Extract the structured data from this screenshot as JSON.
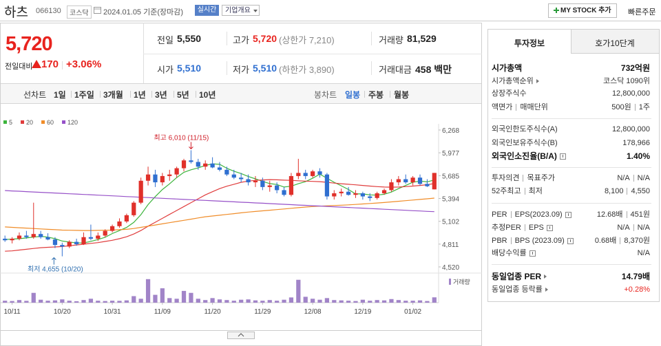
{
  "header": {
    "name": "하츠",
    "code": "066130",
    "market": "코스닥",
    "date": "2024.01.05 기준(장마감)",
    "realtime": "실시간",
    "company": "기업개요",
    "mystock": "MY STOCK 추가",
    "quick_order": "빠른주문"
  },
  "price": {
    "current": "5,720",
    "change_label": "전일대비",
    "change": "170",
    "change_pct": "+3.06%"
  },
  "quote": [
    [
      {
        "label": "전일",
        "value": "5,550"
      },
      {
        "label": "고가",
        "value": "5,720",
        "note": "(상한가 7,210)"
      },
      {
        "label": "거래량",
        "value": "81,529"
      }
    ],
    [
      {
        "label": "시가",
        "value": "5,510"
      },
      {
        "label": "저가",
        "value": "5,510",
        "note": "(하한가 3,890)"
      },
      {
        "label": "거래대금",
        "value": "458 백만"
      }
    ]
  ],
  "chart_tabs": {
    "line_label": "선차트",
    "line": [
      "1일",
      "1주일",
      "3개월",
      "1년",
      "3년",
      "5년",
      "10년"
    ],
    "candle_label": "봉차트",
    "candle": [
      "일봉",
      "주봉",
      "월봉"
    ]
  },
  "side": {
    "tabs": [
      "투자정보",
      "호가10단계"
    ],
    "sections": [
      [
        {
          "label": [
            "시가총액"
          ],
          "value": [
            "732억원"
          ]
        },
        {
          "label": [
            "시가총액순위"
          ],
          "value": [
            "코스닥 1090위"
          ]
        },
        {
          "label": [
            "상장주식수"
          ],
          "value": [
            "12,800,000"
          ]
        },
        {
          "label": [
            "액면가",
            "매매단위"
          ],
          "value": [
            "500원",
            "1주"
          ]
        }
      ],
      [
        {
          "label": [
            "외국인한도주식수(A)"
          ],
          "value": [
            "12,800,000"
          ]
        },
        {
          "label": [
            "외국인보유주식수(B)"
          ],
          "value": [
            "178,966"
          ]
        },
        {
          "label": [
            "외국인소진율(B/A)"
          ],
          "value": [
            "1.40%"
          ]
        }
      ],
      [
        {
          "label": [
            "투자의견",
            "목표주가"
          ],
          "value": [
            "N/A",
            "N/A"
          ]
        },
        {
          "label": [
            "52주최고",
            "최저"
          ],
          "value": [
            "8,100",
            "4,550"
          ]
        }
      ],
      [
        {
          "label": [
            "PER",
            "EPS(2023.09)"
          ],
          "value": [
            "12.68배",
            "451원"
          ]
        },
        {
          "label": [
            "추정PER",
            "EPS"
          ],
          "value": [
            "N/A",
            "N/A"
          ]
        },
        {
          "label": [
            "PBR",
            "BPS (2023.09)"
          ],
          "value": [
            "0.68배",
            "8,370원"
          ]
        },
        {
          "label": [
            "배당수익률"
          ],
          "value": [
            "N/A"
          ]
        }
      ],
      [
        {
          "label": [
            "동일업종 PER"
          ],
          "value": [
            "14.79배"
          ]
        },
        {
          "label": [
            "동일업종 등락률"
          ],
          "value": [
            "+0.28%"
          ]
        }
      ]
    ]
  },
  "chart_data": {
    "type": "candlestick",
    "categories": [
      null,
      "10/11",
      null,
      null,
      null,
      null,
      null,
      null,
      "10/20",
      null,
      null,
      null,
      null,
      null,
      null,
      "10/31",
      null,
      null,
      null,
      null,
      null,
      null,
      "11/09",
      null,
      null,
      null,
      null,
      null,
      null,
      "11/20",
      null,
      null,
      null,
      null,
      null,
      null,
      "11/29",
      null,
      null,
      null,
      null,
      null,
      null,
      "12/08",
      null,
      null,
      null,
      null,
      null,
      null,
      "12/19",
      null,
      null,
      null,
      null,
      null,
      null,
      "01/02",
      null,
      null,
      null
    ],
    "open": [
      4880,
      4860,
      4880,
      4920,
      4900,
      4940,
      4900,
      4870,
      4800,
      4780,
      4840,
      4810,
      4900,
      4880,
      4920,
      4980,
      5040,
      5100,
      5180,
      5340,
      5620,
      5700,
      5600,
      5680,
      5700,
      5780,
      5880,
      5860,
      5800,
      5840,
      5790,
      5760,
      5700,
      5660,
      5640,
      5600,
      5620,
      5540,
      5560,
      5500,
      5440,
      5680,
      5720,
      5680,
      5740,
      5700,
      5420,
      5460,
      5480,
      5440,
      5460,
      5420,
      5400,
      5460,
      5500,
      5600,
      5640,
      5600,
      5660,
      5580,
      5510
    ],
    "high": [
      4920,
      4900,
      4960,
      4980,
      5340,
      4980,
      4950,
      4900,
      4830,
      4860,
      4880,
      4960,
      5060,
      4960,
      5000,
      5060,
      5140,
      5200,
      5360,
      5660,
      5800,
      5760,
      5720,
      5760,
      5800,
      5900,
      6010,
      5900,
      5880,
      5920,
      5860,
      5800,
      5760,
      5720,
      5700,
      5680,
      5660,
      5620,
      5600,
      5540,
      5720,
      5900,
      5760,
      5760,
      5780,
      5720,
      5500,
      5520,
      5540,
      5500,
      5480,
      5460,
      5480,
      5520,
      5640,
      5680,
      5700,
      5680,
      5700,
      5640,
      5720
    ],
    "low": [
      4840,
      4820,
      4860,
      4880,
      4880,
      4880,
      4860,
      4760,
      4655,
      4760,
      4790,
      4800,
      4860,
      4850,
      4900,
      4960,
      5020,
      5080,
      5160,
      5320,
      5560,
      5540,
      5560,
      5620,
      5660,
      5740,
      5840,
      5760,
      5760,
      5780,
      5740,
      5680,
      5640,
      5600,
      5560,
      5540,
      5500,
      5480,
      5460,
      5420,
      5420,
      5640,
      5640,
      5660,
      5660,
      5380,
      5380,
      5420,
      5430,
      5400,
      5380,
      5360,
      5380,
      5440,
      5480,
      5560,
      5580,
      5560,
      5560,
      5540,
      5510
    ],
    "close": [
      4860,
      4880,
      4920,
      4900,
      4940,
      4900,
      4870,
      4800,
      4780,
      4840,
      4810,
      4900,
      4880,
      4920,
      4980,
      5040,
      5100,
      5180,
      5340,
      5620,
      5700,
      5600,
      5680,
      5700,
      5780,
      5880,
      5860,
      5800,
      5840,
      5790,
      5760,
      5700,
      5660,
      5640,
      5600,
      5620,
      5540,
      5560,
      5500,
      5440,
      5680,
      5720,
      5680,
      5740,
      5700,
      5420,
      5460,
      5480,
      5440,
      5460,
      5420,
      5400,
      5460,
      5500,
      5600,
      5640,
      5600,
      5660,
      5580,
      5550,
      5720
    ],
    "up_color": "#e0302a",
    "down_color": "#2f6fd0",
    "series": [
      {
        "name": "5",
        "color": "#3cb43c",
        "values": [
          4870,
          4875,
          4880,
          4890,
          4900,
          4910,
          4900,
          4880,
          4850,
          4838,
          4826,
          4826,
          4846,
          4870,
          4898,
          4946,
          4984,
          5024,
          5088,
          5188,
          5316,
          5418,
          5508,
          5580,
          5660,
          5728,
          5760,
          5784,
          5816,
          5836,
          5830,
          5780,
          5742,
          5712,
          5674,
          5644,
          5612,
          5584,
          5572,
          5540,
          5550,
          5582,
          5608,
          5652,
          5704,
          5652,
          5600,
          5556,
          5508,
          5452,
          5452,
          5440,
          5436,
          5448,
          5476,
          5520,
          5560,
          5600,
          5616,
          5606,
          5630
        ]
      },
      {
        "name": "20",
        "color": "#e03c3c",
        "values": [
          4720,
          4725,
          4735,
          4745,
          4755,
          4765,
          4770,
          4775,
          4780,
          4790,
          4800,
          4810,
          4820,
          4830,
          4845,
          4860,
          4880,
          4905,
          4940,
          4985,
          5040,
          5090,
          5140,
          5190,
          5240,
          5290,
          5340,
          5390,
          5440,
          5480,
          5520,
          5550,
          5575,
          5600,
          5615,
          5625,
          5630,
          5635,
          5632,
          5628,
          5625,
          5620,
          5615,
          5612,
          5608,
          5600,
          5590,
          5582,
          5575,
          5568,
          5560,
          5552,
          5545,
          5540,
          5538,
          5540,
          5545,
          5552,
          5560,
          5570,
          5585
        ]
      },
      {
        "name": "60",
        "color": "#f08c28",
        "values": [
          5030,
          5025,
          5020,
          5015,
          5010,
          5005,
          5000,
          4995,
          4990,
          4988,
          4986,
          4985,
          4985,
          4986,
          4988,
          4990,
          4995,
          5000,
          5010,
          5025,
          5040,
          5055,
          5070,
          5085,
          5100,
          5115,
          5130,
          5145,
          5160,
          5170,
          5180,
          5190,
          5200,
          5210,
          5220,
          5228,
          5236,
          5244,
          5252,
          5260,
          5268,
          5276,
          5284,
          5290,
          5296,
          5300,
          5304,
          5308,
          5312,
          5318,
          5324,
          5330,
          5336,
          5342,
          5350,
          5358,
          5366,
          5374,
          5382,
          5390,
          5398
        ]
      },
      {
        "name": "120",
        "color": "#9650c8",
        "values": [
          5495,
          5490,
          5486,
          5481,
          5477,
          5472,
          5468,
          5463,
          5459,
          5454,
          5450,
          5445,
          5441,
          5436,
          5432,
          5427,
          5423,
          5418,
          5414,
          5409,
          5405,
          5400,
          5396,
          5391,
          5387,
          5382,
          5378,
          5373,
          5369,
          5364,
          5360,
          5355,
          5351,
          5346,
          5342,
          5337,
          5333,
          5328,
          5324,
          5319,
          5315,
          5310,
          5306,
          5301,
          5297,
          5292,
          5288,
          5283,
          5279,
          5274,
          5270,
          5265,
          5261,
          5256,
          5252,
          5247,
          5243,
          5238,
          5234,
          5229,
          5225
        ]
      }
    ],
    "ylim": [
      4520,
      6268
    ],
    "yticks": [
      {
        "value": 6268,
        "label": "6,268"
      },
      {
        "value": 5977,
        "label": "5,977"
      },
      {
        "value": 5685,
        "label": "5,685"
      },
      {
        "value": 5394,
        "label": "5,394"
      },
      {
        "value": 5102,
        "label": "5,102"
      },
      {
        "value": 4811,
        "label": "4,811"
      },
      {
        "value": 4520,
        "label": "4,520"
      }
    ],
    "grid": false,
    "volume_name": "거래량",
    "volume_color": "#a184c8",
    "volume": [
      30000,
      25000,
      40000,
      28000,
      150000,
      45000,
      30000,
      35000,
      50000,
      30000,
      22000,
      40000,
      60000,
      30000,
      25000,
      30000,
      28000,
      35000,
      100000,
      60000,
      360000,
      120000,
      220000,
      70000,
      60000,
      180000,
      150000,
      60000,
      40000,
      70000,
      50000,
      40000,
      30000,
      45000,
      50000,
      35000,
      30000,
      40000,
      30000,
      45000,
      80000,
      350000,
      90000,
      60000,
      45000,
      70000,
      40000,
      35000,
      30000,
      25000,
      45000,
      30000,
      40000,
      35000,
      55000,
      40000,
      30000,
      30000,
      35000,
      25000,
      81529
    ],
    "vlim": [
      0,
      400000
    ],
    "annotations": [
      {
        "text": "최고 6,010 (11/15)",
        "color": "#d0202a"
      },
      {
        "text": "최저 4,655 (10/20)",
        "color": "#2f6fb0"
      }
    ]
  }
}
